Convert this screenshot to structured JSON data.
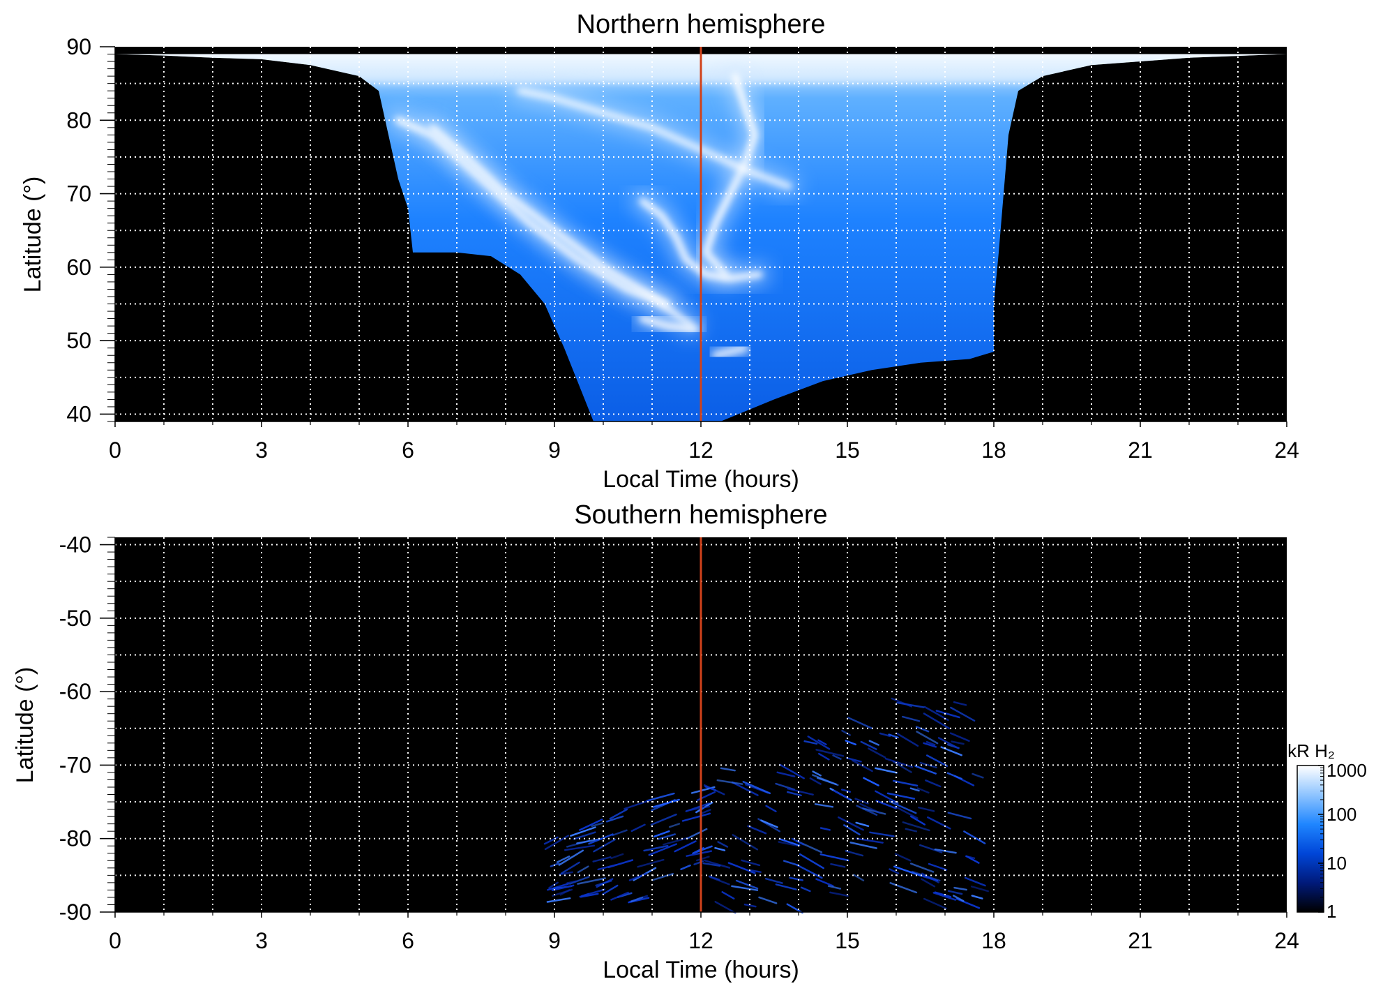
{
  "chart_data": [
    {
      "type": "heatmap",
      "title": "Northern hemisphere",
      "xlabel": "Local Time (hours)",
      "ylabel": "Latitude (°)",
      "xlim": [
        0,
        24
      ],
      "ylim": [
        39,
        90
      ],
      "x_ticks": [
        "0",
        "3",
        "6",
        "9",
        "12",
        "15",
        "18",
        "21",
        "24"
      ],
      "y_ticks": [
        "40",
        "50",
        "60",
        "70",
        "80",
        "90"
      ],
      "x_tick_values": [
        0,
        3,
        6,
        9,
        12,
        15,
        18,
        21,
        24
      ],
      "y_tick_values": [
        40,
        50,
        60,
        70,
        80,
        90
      ],
      "grid": true,
      "reference_line": {
        "x": 12,
        "color": "#d0421b"
      },
      "coverage": {
        "top_latitude": 89,
        "left_edge": [
          [
            0,
            89
          ],
          [
            1,
            88.8
          ],
          [
            2,
            88.5
          ],
          [
            3,
            88.3
          ],
          [
            4,
            87.5
          ],
          [
            5,
            86
          ],
          [
            5.4,
            84
          ],
          [
            5.6,
            78
          ],
          [
            5.8,
            72
          ],
          [
            6,
            68
          ],
          [
            6.1,
            62
          ]
        ],
        "left_bottom": [
          [
            6.1,
            62
          ],
          [
            7,
            62
          ],
          [
            7.7,
            61.5
          ],
          [
            8.3,
            59
          ],
          [
            8.8,
            55
          ],
          [
            9.2,
            49
          ],
          [
            9.5,
            44
          ],
          [
            9.8,
            39
          ]
        ],
        "right_bottom": [
          [
            12.4,
            39
          ],
          [
            13.5,
            42
          ],
          [
            14.5,
            44.5
          ],
          [
            15.5,
            46
          ],
          [
            16.5,
            47
          ],
          [
            17.5,
            47.5
          ],
          [
            18,
            48.5
          ]
        ],
        "right_edge": [
          [
            18,
            48.5
          ],
          [
            18,
            55
          ],
          [
            18.1,
            62
          ],
          [
            18.2,
            70
          ],
          [
            18.3,
            78
          ],
          [
            18.5,
            84
          ],
          [
            19,
            86
          ],
          [
            20,
            87.5
          ],
          [
            22,
            88.5
          ],
          [
            24,
            89
          ]
        ]
      },
      "auroral_arcs": [
        {
          "path": [
            [
              5.8,
              80
            ],
            [
              6.5,
              78
            ],
            [
              7.5,
              72
            ],
            [
              8.5,
              66
            ],
            [
              9.5,
              61
            ],
            [
              10.5,
              57
            ],
            [
              11.3,
              55
            ]
          ],
          "intensity": 900
        },
        {
          "path": [
            [
              6.5,
              79
            ],
            [
              7.2,
              75
            ],
            [
              8,
              70
            ],
            [
              9,
              65
            ],
            [
              10,
              60
            ],
            [
              11,
              56
            ],
            [
              11.8,
              52
            ]
          ],
          "intensity": 400
        },
        {
          "path": [
            [
              12.7,
              86
            ],
            [
              12.9,
              82
            ],
            [
              13.1,
              78
            ],
            [
              12.9,
              74
            ],
            [
              12.6,
              70
            ],
            [
              12.3,
              66
            ],
            [
              12.1,
              62
            ],
            [
              12.5,
              59
            ]
          ],
          "intensity": 1000
        },
        {
          "path": [
            [
              10.8,
              69
            ],
            [
              11.2,
              67
            ],
            [
              11.5,
              64
            ],
            [
              11.7,
              61
            ],
            [
              12.1,
              59
            ],
            [
              12.6,
              58.5
            ],
            [
              13.2,
              59
            ]
          ],
          "intensity": 700
        },
        {
          "path": [
            [
              8.3,
              84
            ],
            [
              9,
              83
            ],
            [
              10,
              81
            ],
            [
              11,
              79
            ],
            [
              12,
              76
            ],
            [
              13,
              73
            ],
            [
              13.8,
              71
            ]
          ],
          "intensity": 300
        },
        {
          "path": [
            [
              10.8,
              53
            ],
            [
              11.3,
              52
            ],
            [
              11.9,
              51.5
            ]
          ],
          "intensity": 600
        },
        {
          "path": [
            [
              12.3,
              48
            ],
            [
              12.6,
              48.5
            ],
            [
              12.9,
              49
            ]
          ],
          "intensity": 400
        }
      ],
      "colorbar_unit": "kR H₂",
      "colorbar_ticks": [
        "1000",
        "100",
        "10",
        "1"
      ],
      "colorbar_tick_values": [
        1000,
        100,
        10,
        1
      ],
      "colorbar_scale": "log",
      "colormap": [
        "#000000",
        "#001a7a",
        "#0046d8",
        "#1f86ff",
        "#8ec4ff",
        "#ffffff"
      ]
    },
    {
      "type": "heatmap",
      "title": "Southern hemisphere",
      "xlabel": "Local Time (hours)",
      "ylabel": "Latitude (°)",
      "xlim": [
        0,
        24
      ],
      "ylim": [
        -90,
        -39
      ],
      "x_ticks": [
        "0",
        "3",
        "6",
        "9",
        "12",
        "15",
        "18",
        "21",
        "24"
      ],
      "y_ticks": [
        "-40",
        "-50",
        "-60",
        "-70",
        "-80",
        "-90"
      ],
      "x_tick_values": [
        0,
        3,
        6,
        9,
        12,
        15,
        18,
        21,
        24
      ],
      "y_tick_values": [
        -40,
        -50,
        -60,
        -70,
        -80,
        -90
      ],
      "grid": true,
      "reference_line": {
        "x": 12,
        "color": "#d0421b"
      },
      "streak_region": {
        "x_range": [
          8.8,
          17.6
        ],
        "lat_range": [
          -89,
          -55
        ]
      },
      "colorbar_unit": "kR H₂",
      "colorbar_ticks": [
        "1000",
        "100",
        "10",
        "1"
      ],
      "colorbar_tick_values": [
        1000,
        100,
        10,
        1
      ],
      "colorbar_scale": "log",
      "colormap": [
        "#000000",
        "#001a7a",
        "#0046d8",
        "#1f86ff",
        "#8ec4ff",
        "#ffffff"
      ]
    }
  ]
}
